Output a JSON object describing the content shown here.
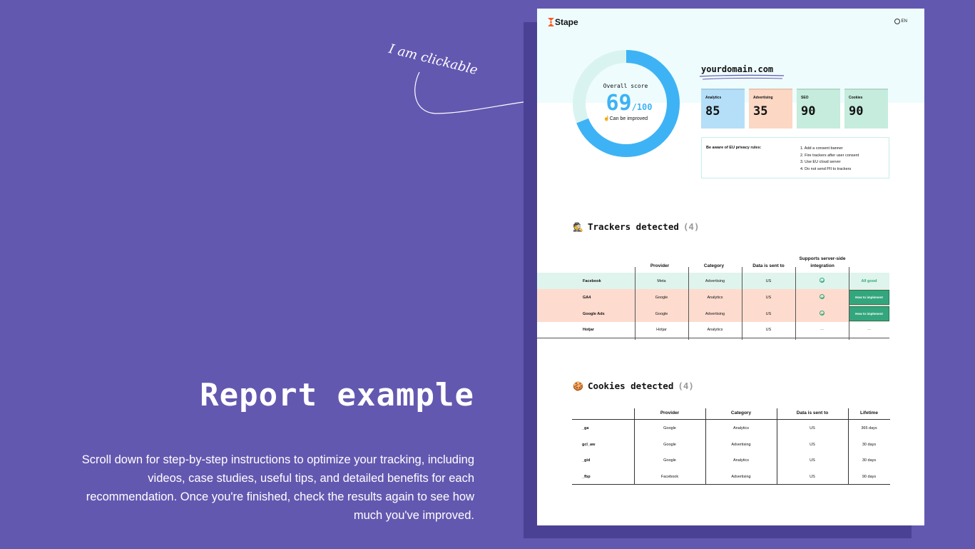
{
  "note": "I am clickable",
  "headline": "Report example",
  "description": "Scroll down for step-by-step instructions to optimize your tracking, including videos, case studies, useful tips, and detailed benefits for each recommendation. Once you're finished, check the results again to see how much you've improved.",
  "report": {
    "logo": "Stape",
    "lang": "EN",
    "score": {
      "label": "Overall score",
      "value": "69",
      "max": "/100",
      "fraction": 0.69,
      "note": "Can be improved"
    },
    "domain": "yourdomain.com",
    "cards": [
      {
        "label": "Analytics",
        "value": "85",
        "color": "#b5dff8"
      },
      {
        "label": "Advertising",
        "value": "35",
        "color": "#fbd7c4"
      },
      {
        "label": "SEO",
        "value": "90",
        "color": "#c5ecdd"
      },
      {
        "label": "Cookies",
        "value": "90",
        "color": "#c5ecdd"
      }
    ],
    "privacy": {
      "title": "Be aware of EU privacy rules:",
      "items": [
        "1. Add a consent banner",
        "2. Fire trackers after user consent",
        "3. Use EU cloud server",
        "4. Do not send PII to trackers"
      ]
    },
    "trackers": {
      "title": "Trackers detected",
      "count": "(4)",
      "headers": [
        "Provider",
        "Category",
        "Data is sent to",
        "Supports server-side integration"
      ],
      "rows": [
        {
          "name": "Facebook",
          "provider": "Meta",
          "category": "Advertising",
          "sent_to": "US",
          "supports": "check",
          "action": "All good",
          "bg": "#dff4ec"
        },
        {
          "name": "GA4",
          "provider": "Google",
          "category": "Analytics",
          "sent_to": "US",
          "supports": "check",
          "action": "How to implement",
          "bg": "#fddccf"
        },
        {
          "name": "Google Ads",
          "provider": "Google",
          "category": "Advertising",
          "sent_to": "US",
          "supports": "check",
          "action": "How to implement",
          "bg": "#fddccf"
        },
        {
          "name": "Hotjar",
          "provider": "Hotjar",
          "category": "Analytics",
          "sent_to": "US",
          "supports": "—",
          "action": "—",
          "bg": "#ffffff"
        }
      ]
    },
    "cookies": {
      "title": "Cookies detected",
      "count": "(4)",
      "headers": [
        "Provider",
        "Category",
        "Data is sent to",
        "Lifetime"
      ],
      "rows": [
        {
          "name": "_ga",
          "provider": "Google",
          "category": "Analytics",
          "sent_to": "US",
          "lifetime": "365 days"
        },
        {
          "name": "gcl_aw",
          "provider": "Google",
          "category": "Advertising",
          "sent_to": "US",
          "lifetime": "30 days"
        },
        {
          "name": "_gid",
          "provider": "Google",
          "category": "Analytics",
          "sent_to": "US",
          "lifetime": "30 days"
        },
        {
          "name": "_fbp",
          "provider": "Facebook",
          "category": "Advertising",
          "sent_to": "US",
          "lifetime": "90 days"
        }
      ]
    }
  }
}
